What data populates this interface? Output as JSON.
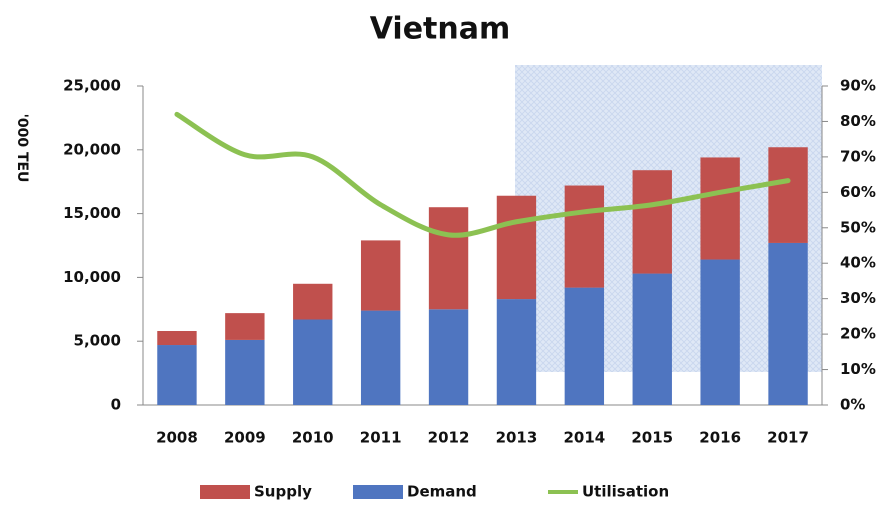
{
  "chart_data": {
    "type": "bar_line",
    "title": "Vietnam",
    "y_label": "'000 TEU",
    "categories": [
      "2008",
      "2009",
      "2010",
      "2011",
      "2012",
      "2013",
      "2014",
      "2015",
      "2016",
      "2017"
    ],
    "series": [
      {
        "name": "Demand",
        "color": "#4f75c0",
        "type": "bar",
        "values": [
          4700,
          5100,
          6700,
          7400,
          7500,
          8300,
          9200,
          10300,
          11400,
          12700
        ]
      },
      {
        "name": "Supply",
        "color": "#c0504d",
        "type": "bar",
        "values": [
          1100,
          2100,
          2800,
          5500,
          8000,
          8100,
          8000,
          8100,
          8000,
          7500
        ]
      },
      {
        "name": "Utilisation",
        "color": "#8cc152",
        "type": "line",
        "axis": "y2",
        "values": [
          82,
          70.6,
          70,
          56.5,
          48,
          51.7,
          54.5,
          56.5,
          60,
          63.3
        ]
      }
    ],
    "ylim": [
      0,
      25000
    ],
    "yticks": [
      0,
      {
        "value": 5000,
        "label": "5,000"
      },
      {
        "value": 10000,
        "label": "10,000"
      },
      {
        "value": 15000,
        "label": "15,000"
      },
      {
        "value": 20000,
        "label": "20,000"
      },
      {
        "value": 25000,
        "label": "25,000"
      }
    ],
    "y2lim": [
      0,
      90
    ],
    "y2ticks": [
      {
        "value": 0,
        "label": "0%"
      },
      {
        "value": 10,
        "label": "10%"
      },
      {
        "value": 20,
        "label": "20%"
      },
      {
        "value": 30,
        "label": "30%"
      },
      {
        "value": 40,
        "label": "40%"
      },
      {
        "value": 50,
        "label": "50%"
      },
      {
        "value": 60,
        "label": "60%"
      },
      {
        "value": 70,
        "label": "70%"
      },
      {
        "value": 80,
        "label": "80%"
      },
      {
        "value": 90,
        "label": "90%"
      }
    ],
    "legend": "bottom"
  }
}
